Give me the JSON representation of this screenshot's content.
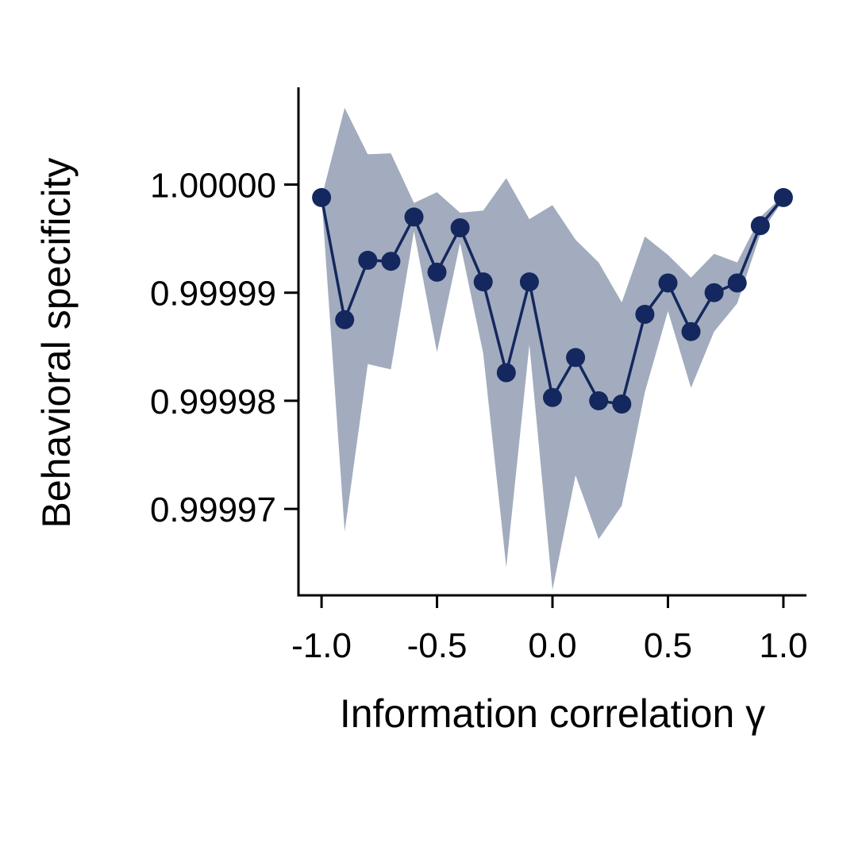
{
  "chart_data": {
    "type": "line",
    "xlabel": "Information correlation γ",
    "ylabel": "Behavioral specificity",
    "xlim": [
      -1.1,
      1.1
    ],
    "ylim": [
      0.999962,
      1.000009
    ],
    "x_ticks": [
      -1.0,
      -0.5,
      0.0,
      0.5,
      1.0
    ],
    "x_tick_labels": [
      "-1.0",
      "-0.5",
      "0.0",
      "0.5",
      "1.0"
    ],
    "y_ticks": [
      0.99997,
      0.99998,
      0.99999,
      1.0
    ],
    "y_tick_labels": [
      "0.99997",
      "0.99998",
      "0.99999",
      "1.00000"
    ],
    "grid": false,
    "x": [
      -1.0,
      -0.9,
      -0.8,
      -0.7,
      -0.6,
      -0.5,
      -0.4,
      -0.3,
      -0.2,
      -0.1,
      0.0,
      0.1,
      0.2,
      0.3,
      0.4,
      0.5,
      0.6,
      0.7,
      0.8,
      0.9,
      1.0
    ],
    "series": [
      {
        "values": [
          0.9999988,
          0.9999875,
          0.999993,
          0.9999929,
          0.999997,
          0.9999919,
          0.999996,
          0.999991,
          0.9999826,
          0.999991,
          0.9999803,
          0.999984,
          0.99998,
          0.9999797,
          0.999988,
          0.9999909,
          0.9999864,
          0.99999,
          0.9999909,
          0.9999962,
          0.9999988
        ],
        "upper": [
          0.9999988,
          1.0000071,
          1.0000028,
          1.0000029,
          0.9999983,
          0.9999993,
          0.9999974,
          0.9999976,
          1.0000006,
          0.9999968,
          0.9999981,
          0.9999949,
          0.9999928,
          0.9999891,
          0.9999952,
          0.9999935,
          0.9999914,
          0.9999936,
          0.9999928,
          0.999997,
          0.999999
        ],
        "lower": [
          0.9999988,
          0.9999679,
          0.9999834,
          0.9999829,
          0.9999957,
          0.9999845,
          0.9999946,
          0.9999844,
          0.9999646,
          0.9999852,
          0.9999625,
          0.9999731,
          0.9999672,
          0.9999703,
          0.9999808,
          0.9999883,
          0.9999812,
          0.9999864,
          0.999989,
          0.9999954,
          0.9999986
        ],
        "line_color": "#14275e",
        "band_color": "#a2acbe"
      }
    ]
  }
}
